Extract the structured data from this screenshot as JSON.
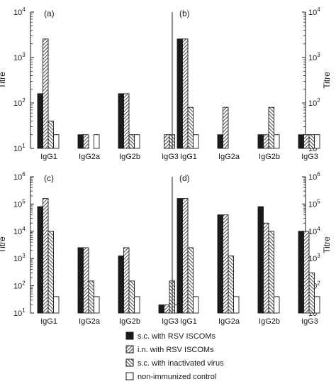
{
  "colors": {
    "ink": "#1a1a1a",
    "background": "#ffffff"
  },
  "legend": {
    "items": [
      {
        "label": "s.c. with RSV ISCOMs",
        "pattern": "solid"
      },
      {
        "label": "i.n. with RSV ISCOMs",
        "pattern": "hatch-forward"
      },
      {
        "label": "s.c. with inactivated virus",
        "pattern": "hatch-back"
      },
      {
        "label": "non-immunized control",
        "pattern": "empty"
      }
    ]
  },
  "chart_data": [
    {
      "type": "bar",
      "panel_label": "(a)",
      "ylabel": "Titre",
      "yscale": "log",
      "ylim": [
        10,
        10000
      ],
      "yticks": [
        "10^1",
        "10^2",
        "10^3",
        "10^4"
      ],
      "categories": [
        "IgG1",
        "IgG2a",
        "IgG2b",
        "IgG3"
      ],
      "series": [
        {
          "name": "s.c. with RSV ISCOMs",
          "values": [
            160,
            20,
            160,
            null
          ]
        },
        {
          "name": "i.n. with RSV ISCOMs",
          "values": [
            2560,
            20,
            160,
            20
          ]
        },
        {
          "name": "s.c. with inactivated virus",
          "values": [
            40,
            null,
            20,
            20
          ]
        },
        {
          "name": "non-immunized control",
          "values": [
            20,
            20,
            20,
            null
          ]
        }
      ]
    },
    {
      "type": "bar",
      "panel_label": "(b)",
      "ylabel": "Titre",
      "yscale": "log",
      "ylim": [
        10,
        10000
      ],
      "yticks": [
        "10^1",
        "10^2",
        "10^3",
        "10^4"
      ],
      "categories": [
        "IgG1",
        "IgG2a",
        "IgG2b",
        "IgG3"
      ],
      "series": [
        {
          "name": "s.c. with RSV ISCOMs",
          "values": [
            2560,
            20,
            20,
            20
          ]
        },
        {
          "name": "i.n. with RSV ISCOMs",
          "values": [
            2560,
            80,
            20,
            20
          ]
        },
        {
          "name": "s.c. with inactivated virus",
          "values": [
            80,
            null,
            80,
            20
          ]
        },
        {
          "name": "non-immunized control",
          "values": [
            20,
            null,
            20,
            20
          ]
        }
      ]
    },
    {
      "type": "bar",
      "panel_label": "(c)",
      "ylabel": "Titre",
      "yscale": "log",
      "ylim": [
        10,
        1000000
      ],
      "yticks": [
        "10^1",
        "10^2",
        "10^3",
        "10^4",
        "10^5",
        "10^6"
      ],
      "categories": [
        "IgG1",
        "IgG2a",
        "IgG2b",
        "IgG3"
      ],
      "series": [
        {
          "name": "s.c. with RSV ISCOMs",
          "values": [
            80000,
            2500,
            1250,
            20
          ]
        },
        {
          "name": "i.n. with RSV ISCOMs",
          "values": [
            160000,
            2500,
            2500,
            20
          ]
        },
        {
          "name": "s.c. with inactivated virus",
          "values": [
            10000,
            150,
            150,
            150
          ]
        },
        {
          "name": "non-immunized control",
          "values": [
            40,
            40,
            40,
            20
          ]
        }
      ]
    },
    {
      "type": "bar",
      "panel_label": "(d)",
      "ylabel": "Titre",
      "yscale": "log",
      "ylim": [
        10,
        1000000
      ],
      "yticks": [
        "10^1",
        "10^2",
        "10^3",
        "10^4",
        "10^5",
        "10^6"
      ],
      "categories": [
        "IgG1",
        "IgG2a",
        "IgG2b",
        "IgG3"
      ],
      "series": [
        {
          "name": "s.c. with RSV ISCOMs",
          "values": [
            160000,
            40000,
            80000,
            10000
          ]
        },
        {
          "name": "i.n. with RSV ISCOMs",
          "values": [
            160000,
            40000,
            20000,
            10000
          ]
        },
        {
          "name": "s.c. with inactivated virus",
          "values": [
            2500,
            1250,
            10000,
            300
          ]
        },
        {
          "name": "non-immunized control",
          "values": [
            40,
            40,
            40,
            40
          ]
        }
      ]
    }
  ]
}
